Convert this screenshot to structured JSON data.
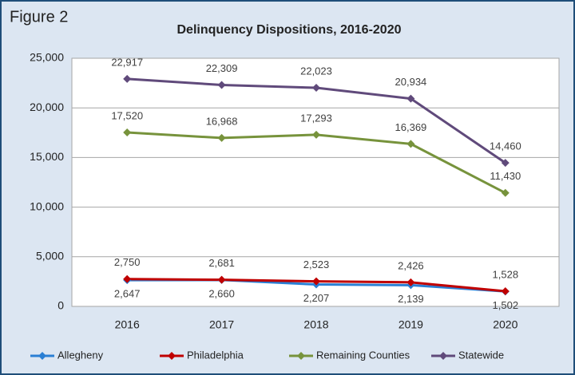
{
  "chart_data": {
    "type": "line",
    "figure_label": "Figure 2",
    "title": "Delinquency Dispositions, 2016-2020",
    "categories": [
      "2016",
      "2017",
      "2018",
      "2019",
      "2020"
    ],
    "series": [
      {
        "name": "Allegheny",
        "color": "#2a7fd4",
        "values": [
          2647,
          2660,
          2207,
          2139,
          1502
        ],
        "value_labels": [
          "2,647",
          "2,660",
          "2,207",
          "2,139",
          "1,502"
        ]
      },
      {
        "name": "Philadelphia",
        "color": "#c00000",
        "values": [
          2750,
          2681,
          2523,
          2426,
          1528
        ],
        "value_labels": [
          "2,750",
          "2,681",
          "2,523",
          "2,426",
          "1,528"
        ]
      },
      {
        "name": "Remaining Counties",
        "color": "#77933c",
        "values": [
          17520,
          16968,
          17293,
          16369,
          11430
        ],
        "value_labels": [
          "17,520",
          "16,968",
          "17,293",
          "16,369",
          "11,430"
        ]
      },
      {
        "name": "Statewide",
        "color": "#604a7b",
        "values": [
          22917,
          22309,
          22023,
          20934,
          14460
        ],
        "value_labels": [
          "22,917",
          "22,309",
          "22,023",
          "20,934",
          "14,460"
        ]
      }
    ],
    "ylim": [
      0,
      25000
    ],
    "yticks": [
      0,
      {
        "value": 5000,
        "label": "5,000"
      },
      {
        "value": 10000,
        "label": "10,000"
      },
      {
        "value": 15000,
        "label": "15,000"
      },
      {
        "value": 20000,
        "label": "20,000"
      },
      {
        "value": 25000,
        "label": "25,000"
      }
    ],
    "grid": true,
    "legend": "bottom"
  }
}
